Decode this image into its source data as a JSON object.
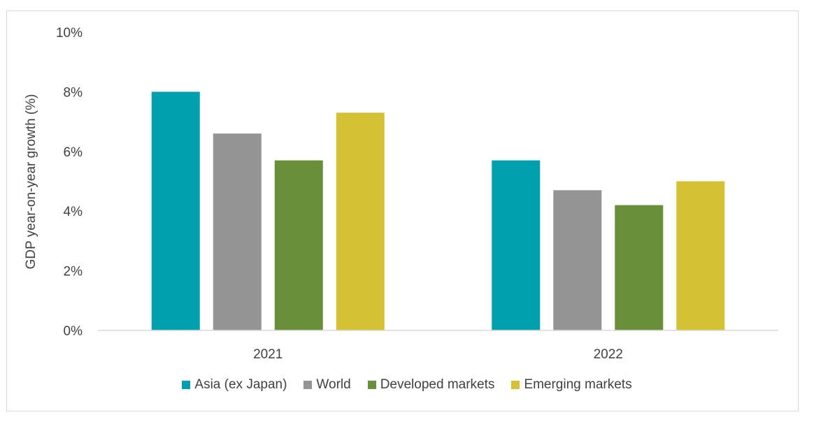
{
  "chart_data": {
    "type": "bar",
    "categories": [
      "2021",
      "2022"
    ],
    "ylabel": "GDP year-on-year growth (%)",
    "ylim": [
      0,
      10
    ],
    "yticks": [
      "0%",
      "2%",
      "4%",
      "6%",
      "8%",
      "10%"
    ],
    "grid": false,
    "legend_position": "bottom",
    "series": [
      {
        "name": "Asia (ex Japan)",
        "color": "#00a0b0",
        "values": [
          8.0,
          5.7
        ]
      },
      {
        "name": "World",
        "color": "#949494",
        "values": [
          6.6,
          4.7
        ]
      },
      {
        "name": "Developed markets",
        "color": "#6a8f3a",
        "values": [
          5.7,
          4.2
        ]
      },
      {
        "name": "Emerging markets",
        "color": "#d4c234",
        "values": [
          7.3,
          5.0
        ]
      }
    ]
  }
}
